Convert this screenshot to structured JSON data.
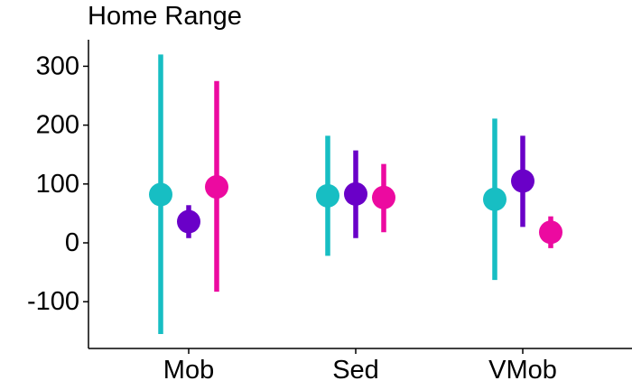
{
  "chart_data": {
    "type": "scatter",
    "title": "Home Range",
    "xlabel": "",
    "ylabel": "",
    "categories": [
      "Mob",
      "Sed",
      "VMob"
    ],
    "ylim": [
      -180,
      345
    ],
    "y_ticks": [
      -100,
      0,
      100,
      200,
      300
    ],
    "y_tick_labels": [
      "-100",
      "0",
      "100",
      "200",
      "300"
    ],
    "grid": false,
    "legend": "none",
    "series": [
      {
        "color": "#17BEC3",
        "points": [
          {
            "category": "Mob",
            "y": 82,
            "lower": -155,
            "upper": 320
          },
          {
            "category": "Sed",
            "y": 80,
            "lower": -22,
            "upper": 182
          },
          {
            "category": "VMob",
            "y": 74,
            "lower": -63,
            "upper": 211
          }
        ]
      },
      {
        "color": "#6A00C8",
        "points": [
          {
            "category": "Mob",
            "y": 36,
            "lower": 8,
            "upper": 64
          },
          {
            "category": "Sed",
            "y": 83,
            "lower": 8,
            "upper": 157
          },
          {
            "category": "VMob",
            "y": 105,
            "lower": 27,
            "upper": 182
          }
        ]
      },
      {
        "color": "#EC0AA0",
        "points": [
          {
            "category": "Mob",
            "y": 95,
            "lower": -83,
            "upper": 275
          },
          {
            "category": "Sed",
            "y": 77,
            "lower": 18,
            "upper": 134
          },
          {
            "category": "VMob",
            "y": 18,
            "lower": -9,
            "upper": 45
          }
        ]
      }
    ]
  }
}
